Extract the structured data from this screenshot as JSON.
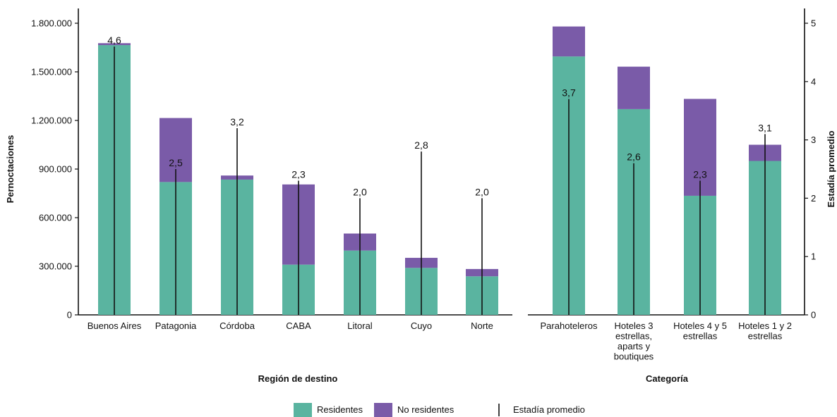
{
  "chart_data": {
    "type": "bar",
    "stacked": true,
    "left_axis": {
      "title": "Pernoctaciones",
      "ylim": [
        0,
        1800000
      ],
      "ticks": [
        0,
        300000,
        600000,
        900000,
        1200000,
        1500000,
        1800000
      ],
      "tick_labels": [
        "0",
        "300.000",
        "600.000",
        "900.000",
        "1.200.000",
        "1.500.000",
        "1.800.000"
      ]
    },
    "right_axis": {
      "title": "Estadía promedio",
      "ylim": [
        0,
        5
      ],
      "ticks": [
        0,
        1,
        2,
        3,
        4,
        5
      ],
      "tick_labels": [
        "0",
        "1",
        "2",
        "3",
        "4",
        "5"
      ]
    },
    "legend": {
      "placement": "bottom",
      "items": [
        {
          "label": "Residentes",
          "color": "#5ab4a0",
          "kind": "box"
        },
        {
          "label": "No residentes",
          "color": "#7a5ba8",
          "kind": "box"
        },
        {
          "label": "Estadía promedio",
          "color": "#111111",
          "kind": "line"
        }
      ]
    },
    "panels": [
      {
        "xlabel": "Región de destino",
        "categories": [
          [
            "Buenos Aires"
          ],
          [
            "Patagonia"
          ],
          [
            "Córdoba"
          ],
          [
            "CABA"
          ],
          [
            "Litoral"
          ],
          [
            "Cuyo"
          ],
          [
            "Norte"
          ]
        ],
        "series": [
          {
            "name": "Residentes",
            "values": [
              1665000,
              820000,
              835000,
              310000,
              397000,
              290000,
              238000
            ]
          },
          {
            "name": "No residentes",
            "values": [
              12000,
              395000,
              25000,
              495000,
              105000,
              62000,
              45000
            ]
          }
        ],
        "estadia_promedio": [
          4.6,
          2.5,
          3.2,
          2.3,
          2.0,
          2.8,
          2.0
        ],
        "estadia_labels": [
          "4,6",
          "2,5",
          "3,2",
          "2,3",
          "2,0",
          "2,8",
          "2,0"
        ]
      },
      {
        "xlabel": "Categoría",
        "categories": [
          [
            "Parahoteleros"
          ],
          [
            "Hoteles 3",
            "estrellas,",
            "aparts y",
            "boutiques"
          ],
          [
            "Hoteles 4 y 5",
            "estrellas"
          ],
          [
            "Hoteles 1 y 2",
            "estrellas"
          ]
        ],
        "series": [
          {
            "name": "Residentes",
            "values": [
              1595000,
              1270000,
              735000,
              950000
            ]
          },
          {
            "name": "No residentes",
            "values": [
              185000,
              262000,
              598000,
              100000
            ]
          }
        ],
        "estadia_promedio": [
          3.7,
          2.6,
          2.3,
          3.1
        ],
        "estadia_labels": [
          "3,7",
          "2,6",
          "2,3",
          "3,1"
        ]
      }
    ]
  }
}
